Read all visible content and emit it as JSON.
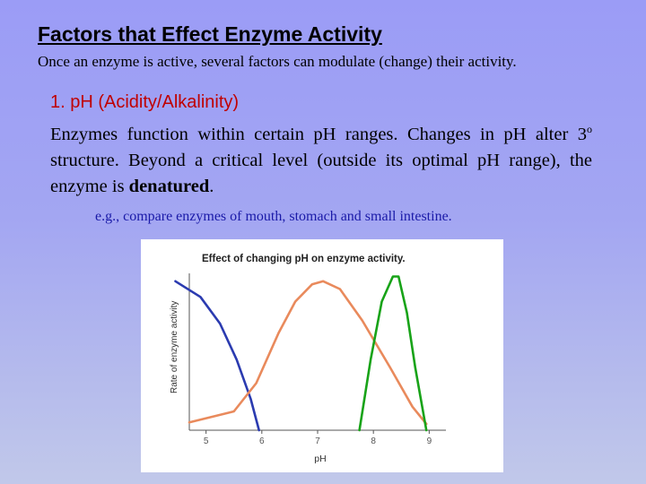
{
  "slide": {
    "title": "Factors that Effect Enzyme Activity",
    "subtitle": "Once an enzyme is active, several factors can modulate (change) their activity.",
    "heading": "1. pH (Acidity/Alkalinity)",
    "body_part1": "Enzymes function within certain pH ranges. Changes in pH alter 3",
    "body_sup": "o",
    "body_part2": " structure. Beyond a critical level (outside its optimal pH range), the enzyme is ",
    "body_bold": "denatured",
    "body_end": ".",
    "example": "e.g., compare enzymes of mouth, stomach and small intestine."
  },
  "chart_data": {
    "type": "line",
    "title": "Effect of changing pH on enzyme activity.",
    "xlabel": "pH",
    "ylabel": "Rate of enzyme activity",
    "xlim": [
      4.7,
      9.3
    ],
    "ylim": [
      0,
      1
    ],
    "x_ticks": [
      "5",
      "6",
      "7",
      "8",
      "9"
    ],
    "grid": false,
    "legend": "none",
    "series": [
      {
        "color": "#2b3bb0",
        "x": [
          4.45,
          4.9,
          5.25,
          5.55,
          5.8,
          5.95
        ],
        "y": [
          0.95,
          0.85,
          0.68,
          0.45,
          0.2,
          0.0
        ]
      },
      {
        "color": "#e98a5c",
        "x": [
          4.7,
          5.5,
          5.9,
          6.3,
          6.6,
          6.9,
          7.1,
          7.4,
          7.8,
          8.3,
          8.7,
          8.95
        ],
        "y": [
          0.05,
          0.12,
          0.3,
          0.62,
          0.82,
          0.93,
          0.95,
          0.9,
          0.7,
          0.4,
          0.15,
          0.04
        ]
      },
      {
        "color": "#18a318",
        "x": [
          7.75,
          7.95,
          8.15,
          8.35,
          8.45,
          8.6,
          8.75,
          8.95
        ],
        "y": [
          0.0,
          0.45,
          0.82,
          0.98,
          0.98,
          0.75,
          0.4,
          0.0
        ]
      }
    ]
  }
}
